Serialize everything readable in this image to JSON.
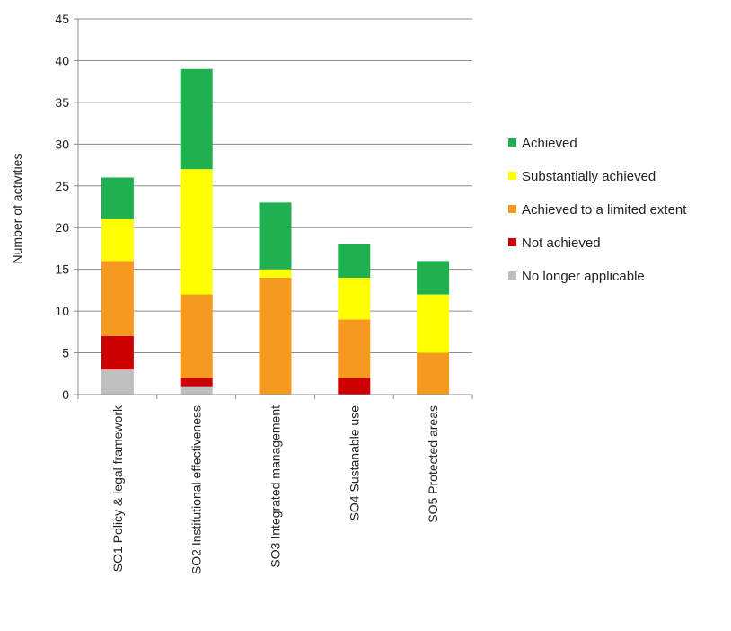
{
  "chart_data": {
    "type": "bar",
    "stacked": true,
    "ylabel": "Number of activities",
    "ylim": [
      0,
      45
    ],
    "yticks": [
      0,
      5,
      10,
      15,
      20,
      25,
      30,
      35,
      40,
      45
    ],
    "grid": true,
    "legend_position": "right",
    "categories": [
      "SO1 Policy & legal framework",
      "SO2 Institutional effectiveness",
      "SO3 Integrated management",
      "SO4 Sustanable use",
      "SO5 Protected areas"
    ],
    "series": [
      {
        "name": "No longer applicable",
        "color": "#bfbfbf",
        "values": [
          3,
          1,
          0,
          0,
          0
        ]
      },
      {
        "name": "Not achieved",
        "color": "#cc0000",
        "values": [
          4,
          1,
          0,
          2,
          0
        ]
      },
      {
        "name": "Achieved to a limited extent",
        "color": "#f59a1e",
        "values": [
          9,
          10,
          14,
          7,
          5
        ]
      },
      {
        "name": "Substantially achieved",
        "color": "#ffff00",
        "values": [
          5,
          15,
          1,
          5,
          7
        ]
      },
      {
        "name": "Achieved",
        "color": "#1fb04f",
        "values": [
          5,
          12,
          8,
          4,
          4
        ]
      }
    ],
    "legend_order": [
      "Achieved",
      "Substantially achieved",
      "Achieved to a limited extent",
      "Not achieved",
      "No longer applicable"
    ]
  }
}
